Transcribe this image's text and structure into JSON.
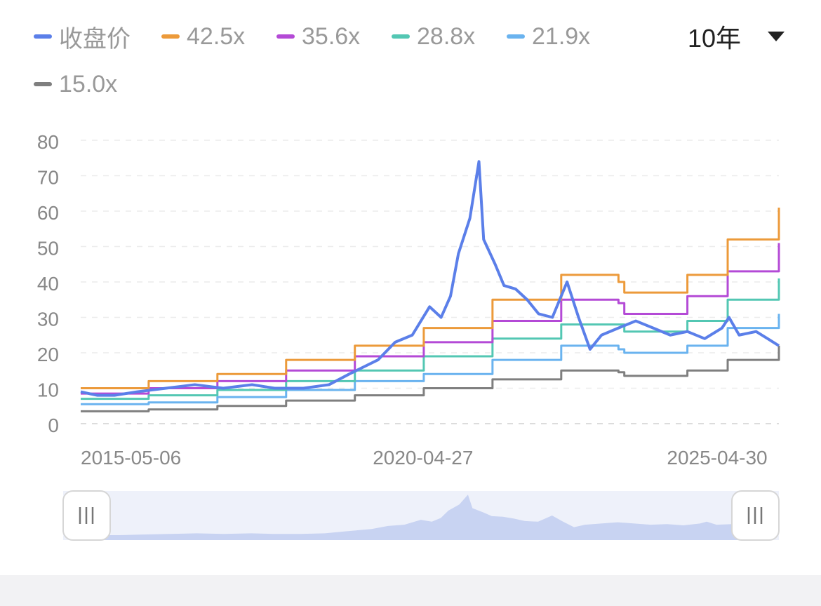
{
  "period_selector": {
    "label": "10年",
    "icon": "triangle-down-icon"
  },
  "legend": [
    {
      "name": "收盘价",
      "color": "#5b7fe9"
    },
    {
      "name": "42.5x",
      "color": "#ec9a3a"
    },
    {
      "name": "35.6x",
      "color": "#b44ad6"
    },
    {
      "name": "28.8x",
      "color": "#53c7b3"
    },
    {
      "name": "21.9x",
      "color": "#6ab3ef"
    },
    {
      "name": "15.0x",
      "color": "#7f7f7f"
    }
  ],
  "chart_data": {
    "type": "line",
    "x_ticks": [
      "2015-05-06",
      "2020-04-27",
      "2025-04-30"
    ],
    "x_range": [
      "2015-05-06",
      "2025-06-30"
    ],
    "ylim": [
      0,
      80
    ],
    "y_ticks": [
      0,
      10,
      20,
      30,
      40,
      50,
      60,
      70,
      80
    ],
    "grid": "horizontal dashed",
    "series": [
      {
        "name": "收盘价",
        "color": "#5b7fe9",
        "x": [
          "2015-05-06",
          "2015-08-01",
          "2015-11-01",
          "2016-03-01",
          "2016-08-01",
          "2017-01-01",
          "2017-06-01",
          "2017-11-01",
          "2018-03-01",
          "2018-08-01",
          "2018-12-15",
          "2019-04-01",
          "2019-09-01",
          "2019-12-01",
          "2020-03-01",
          "2020-06-01",
          "2020-08-01",
          "2020-09-20",
          "2020-11-01",
          "2021-01-01",
          "2021-02-18",
          "2021-03-15",
          "2021-05-15",
          "2021-07-01",
          "2021-09-01",
          "2021-11-01",
          "2022-01-01",
          "2022-03-15",
          "2022-06-01",
          "2022-08-01",
          "2022-10-01",
          "2022-12-01",
          "2023-03-01",
          "2023-06-01",
          "2023-09-01",
          "2023-12-01",
          "2024-03-01",
          "2024-06-01",
          "2024-09-01",
          "2024-10-08",
          "2024-12-01",
          "2025-03-01",
          "2025-05-01",
          "2025-06-30"
        ],
        "y": [
          9,
          8,
          8,
          9,
          10,
          11,
          10,
          11,
          10,
          10,
          11,
          14,
          18,
          23,
          25,
          33,
          30,
          36,
          48,
          58,
          74,
          52,
          45,
          39,
          38,
          35,
          31,
          30,
          40,
          30,
          21,
          25,
          27,
          29,
          27,
          25,
          26,
          24,
          27,
          30,
          25,
          26,
          24,
          22
        ]
      },
      {
        "name": "42.5x",
        "color": "#ec9a3a",
        "x": [
          "2015-05-06",
          "2016-05-01",
          "2017-05-01",
          "2018-05-01",
          "2019-05-01",
          "2020-05-01",
          "2021-05-01",
          "2022-05-01",
          "2023-03-01",
          "2023-04-01",
          "2024-03-01",
          "2024-10-01",
          "2025-06-30"
        ],
        "y": [
          10,
          12,
          14,
          18,
          22,
          27,
          35,
          42,
          40,
          37,
          42,
          52,
          61
        ]
      },
      {
        "name": "35.6x",
        "color": "#b44ad6",
        "x": [
          "2015-05-06",
          "2016-05-01",
          "2017-05-01",
          "2018-05-01",
          "2019-05-01",
          "2020-05-01",
          "2021-05-01",
          "2022-05-01",
          "2023-03-01",
          "2023-04-01",
          "2024-03-01",
          "2024-10-01",
          "2025-06-30"
        ],
        "y": [
          8.5,
          10,
          12,
          15,
          19,
          23,
          29,
          35,
          34,
          31,
          36,
          43,
          51
        ]
      },
      {
        "name": "28.8x",
        "color": "#53c7b3",
        "x": [
          "2015-05-06",
          "2016-05-01",
          "2017-05-01",
          "2018-05-01",
          "2019-05-01",
          "2020-05-01",
          "2021-05-01",
          "2022-05-01",
          "2023-03-01",
          "2023-04-01",
          "2024-03-01",
          "2024-10-01",
          "2025-06-30"
        ],
        "y": [
          7,
          8,
          9.5,
          12,
          15,
          19,
          24,
          28,
          28,
          26,
          29,
          35,
          41
        ]
      },
      {
        "name": "21.9x",
        "color": "#6ab3ef",
        "x": [
          "2015-05-06",
          "2016-05-01",
          "2017-05-01",
          "2018-05-01",
          "2019-05-01",
          "2020-05-01",
          "2021-05-01",
          "2022-05-01",
          "2023-03-01",
          "2023-04-01",
          "2024-03-01",
          "2024-10-01",
          "2025-06-30"
        ],
        "y": [
          5.5,
          6,
          7.5,
          9.5,
          12,
          14,
          18,
          22,
          21,
          20,
          22,
          27,
          31
        ]
      },
      {
        "name": "15.0x",
        "color": "#7f7f7f",
        "x": [
          "2015-05-06",
          "2016-05-01",
          "2017-05-01",
          "2018-05-01",
          "2019-05-01",
          "2020-05-01",
          "2021-05-01",
          "2022-05-01",
          "2023-03-01",
          "2023-04-01",
          "2024-03-01",
          "2024-10-01",
          "2025-06-30"
        ],
        "y": [
          3.5,
          4,
          5,
          6.5,
          8,
          10,
          12.5,
          15,
          14.5,
          13.5,
          15,
          18,
          22
        ]
      }
    ]
  },
  "range_slider": {
    "start_fraction": 0,
    "end_fraction": 1,
    "fill_color": "#c8d3f2",
    "handle_icon": "grip-lines-icon"
  }
}
